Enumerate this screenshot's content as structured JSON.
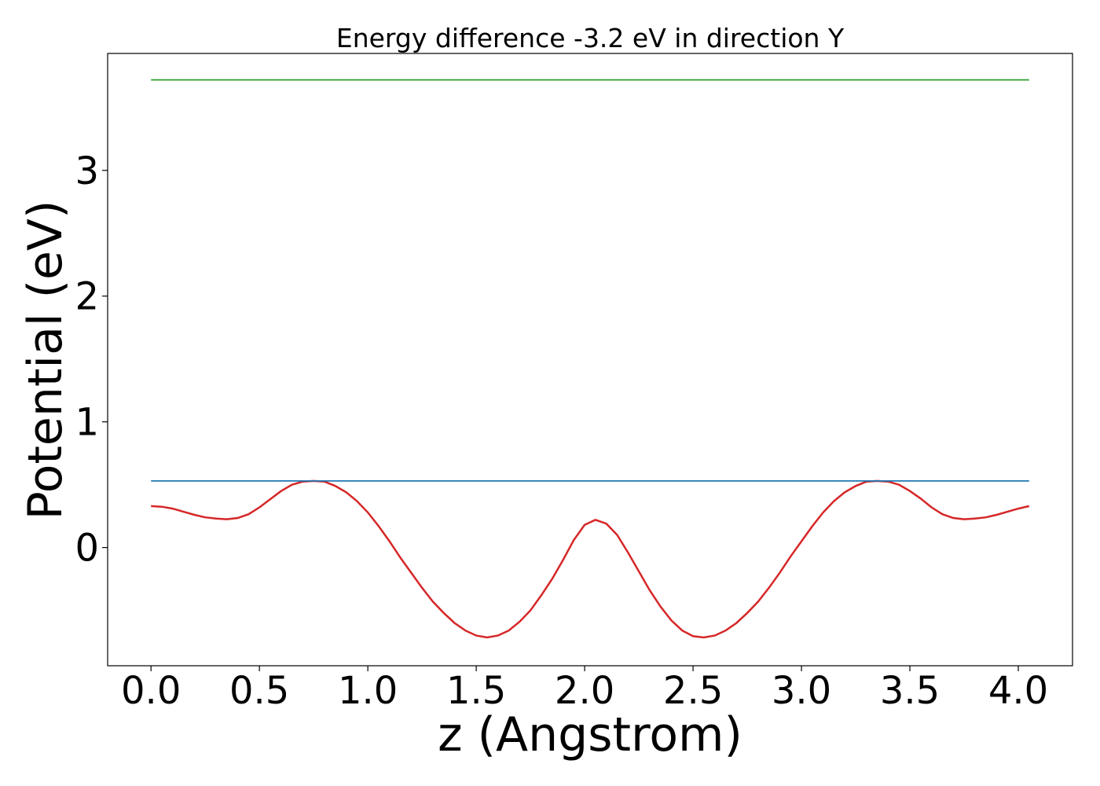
{
  "chart_data": {
    "type": "line",
    "title": "Energy difference -3.2 eV in direction Y",
    "xlabel": "z (Angstrom)",
    "ylabel": "Potential (eV)",
    "xlim": [
      -0.2,
      4.25
    ],
    "ylim": [
      -0.94,
      3.93
    ],
    "xticks": [
      0.0,
      0.5,
      1.0,
      1.5,
      2.0,
      2.5,
      3.0,
      3.5,
      4.0
    ],
    "xtick_labels": [
      "0.0",
      "0.5",
      "1.0",
      "1.5",
      "2.0",
      "2.5",
      "3.0",
      "3.5",
      "4.0"
    ],
    "yticks": [
      0,
      1,
      2,
      3
    ],
    "ytick_labels": [
      "0",
      "1",
      "2",
      "3"
    ],
    "grid": false,
    "series": [
      {
        "color": "#d62728",
        "x": [
          0.0,
          0.05,
          0.1,
          0.15,
          0.2,
          0.25,
          0.3,
          0.35,
          0.4,
          0.45,
          0.5,
          0.55,
          0.6,
          0.65,
          0.7,
          0.75,
          0.8,
          0.85,
          0.9,
          0.95,
          1.0,
          1.05,
          1.1,
          1.15,
          1.2,
          1.25,
          1.3,
          1.35,
          1.4,
          1.45,
          1.5,
          1.55,
          1.6,
          1.65,
          1.7,
          1.75,
          1.8,
          1.85,
          1.9,
          1.95,
          2.0,
          2.05,
          2.1,
          2.15,
          2.2,
          2.25,
          2.3,
          2.35,
          2.4,
          2.45,
          2.5,
          2.55,
          2.6,
          2.65,
          2.7,
          2.75,
          2.8,
          2.85,
          2.9,
          2.95,
          3.0,
          3.05,
          3.1,
          3.15,
          3.2,
          3.25,
          3.3,
          3.35,
          3.4,
          3.45,
          3.5,
          3.55,
          3.6,
          3.65,
          3.7,
          3.75,
          3.8,
          3.85,
          3.9,
          3.95,
          4.0,
          4.05
        ],
        "y": [
          0.33,
          0.325,
          0.31,
          0.285,
          0.26,
          0.24,
          0.23,
          0.225,
          0.235,
          0.265,
          0.32,
          0.385,
          0.45,
          0.5,
          0.525,
          0.53,
          0.525,
          0.49,
          0.44,
          0.37,
          0.28,
          0.17,
          0.05,
          -0.08,
          -0.2,
          -0.32,
          -0.43,
          -0.52,
          -0.6,
          -0.66,
          -0.7,
          -0.715,
          -0.7,
          -0.66,
          -0.59,
          -0.5,
          -0.38,
          -0.25,
          -0.1,
          0.06,
          0.18,
          0.22,
          0.19,
          0.1,
          -0.04,
          -0.19,
          -0.34,
          -0.47,
          -0.58,
          -0.66,
          -0.705,
          -0.715,
          -0.7,
          -0.66,
          -0.6,
          -0.52,
          -0.43,
          -0.32,
          -0.2,
          -0.07,
          0.05,
          0.17,
          0.28,
          0.37,
          0.44,
          0.49,
          0.525,
          0.53,
          0.525,
          0.5,
          0.45,
          0.39,
          0.32,
          0.265,
          0.235,
          0.225,
          0.23,
          0.24,
          0.26,
          0.285,
          0.31,
          0.33
        ]
      },
      {
        "color": "#1f77b4",
        "x": [
          0.0,
          4.05
        ],
        "y": [
          0.53,
          0.53
        ]
      },
      {
        "color": "#2ca02c",
        "x": [
          0.0,
          4.05
        ],
        "y": [
          3.72,
          3.72
        ]
      }
    ]
  }
}
